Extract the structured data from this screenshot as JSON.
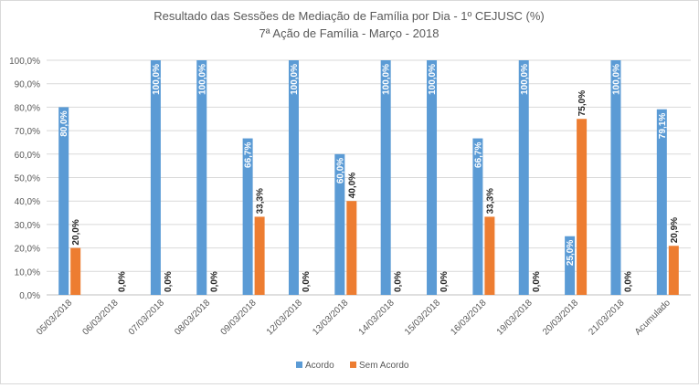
{
  "chart_data": {
    "type": "bar",
    "title": "Resultado das Sessões de Mediação de Família por  Dia - 1º CEJUSC (%)",
    "subtitle": "7ª Ação de Família -  Março  - 2018",
    "xlabel": "",
    "ylabel": "",
    "ylim": [
      0,
      100
    ],
    "yticks": [
      "0,0%",
      "10,0%",
      "20,0%",
      "30,0%",
      "40,0%",
      "50,0%",
      "60,0%",
      "70,0%",
      "80,0%",
      "90,0%",
      "100,0%"
    ],
    "grid": true,
    "legend_position": "bottom",
    "categories": [
      "05/03/2018",
      "06/03/2018",
      "07/03/2018",
      "08/03/2018",
      "09/03/2018",
      "12/03/2018",
      "13/03/2018",
      "14/03/2018",
      "15/03/2018",
      "16/03/2018",
      "19/03/2018",
      "20/03/2018",
      "21/03/2018",
      "Acumulado"
    ],
    "series": [
      {
        "name": "Acordo",
        "color": "#5b9bd5",
        "values": [
          80.0,
          0,
          100.0,
          100.0,
          66.7,
          100.0,
          60.0,
          100.0,
          100.0,
          66.7,
          100.0,
          25.0,
          100.0,
          79.1
        ],
        "labels": [
          "80,0%",
          "",
          "100,0%",
          "100,0%",
          "66,7%",
          "100,0%",
          "60,0%",
          "100,0%",
          "100,0%",
          "66,7%",
          "100,0%",
          "25,0%",
          "100,0%",
          "79,1%"
        ]
      },
      {
        "name": "Sem Acordo",
        "color": "#ed7d31",
        "values": [
          20.0,
          0.0,
          0.0,
          0.0,
          33.3,
          0.0,
          40.0,
          0.0,
          0.0,
          33.3,
          0.0,
          75.0,
          0.0,
          20.9
        ],
        "labels": [
          "20,0%",
          "0,0%",
          "0,0%",
          "0,0%",
          "33,3%",
          "0,0%",
          "40,0%",
          "0,0%",
          "0,0%",
          "33,3%",
          "0,0%",
          "75,0%",
          "0,0%",
          "20,9%"
        ]
      }
    ]
  }
}
